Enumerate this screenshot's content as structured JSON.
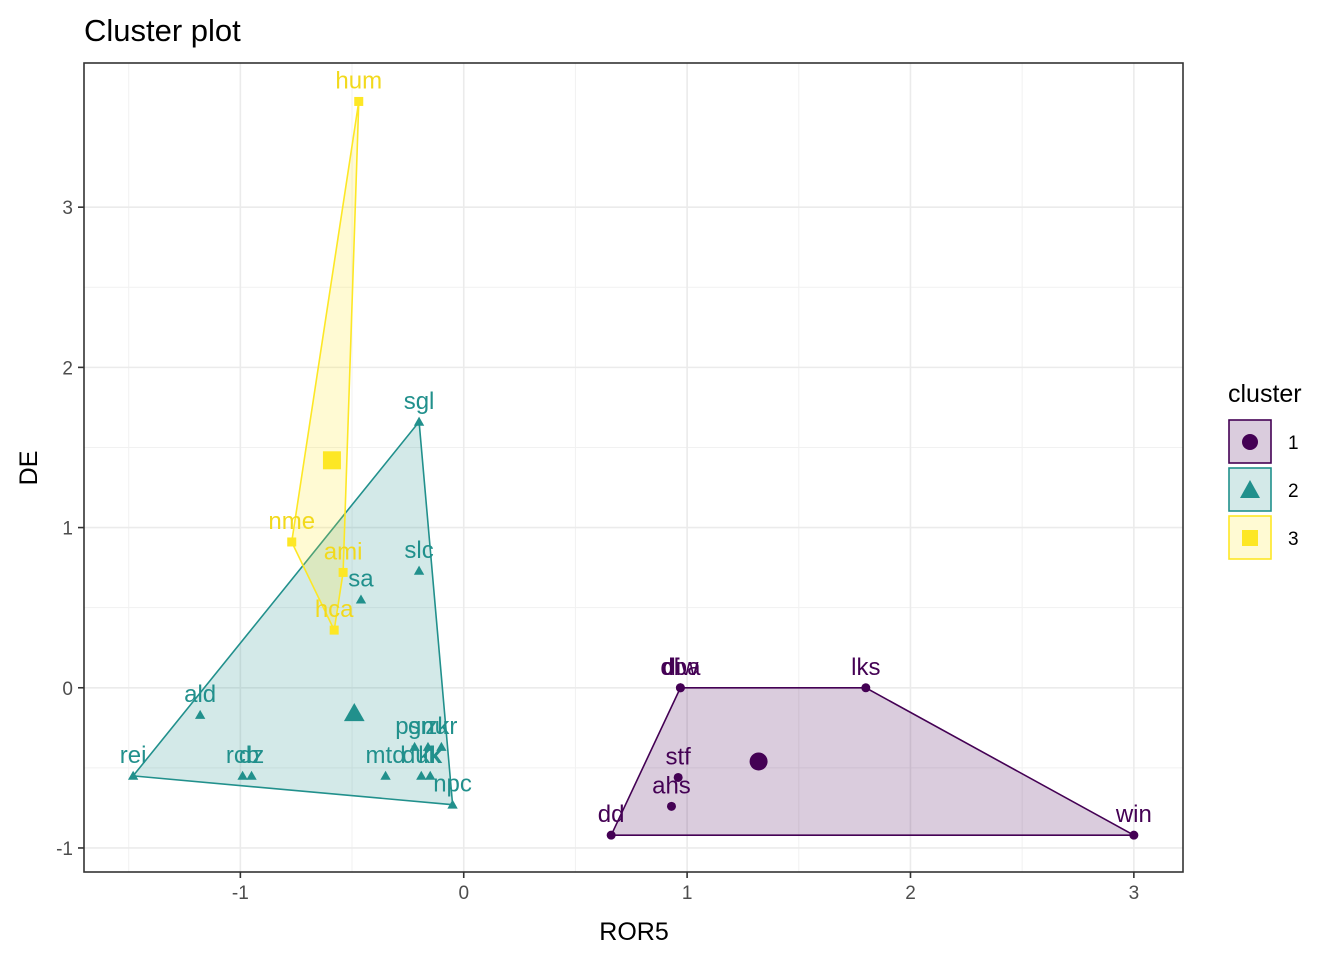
{
  "chart_data": {
    "type": "scatter",
    "title": "Cluster plot",
    "xlabel": "ROR5",
    "ylabel": "DE",
    "xlim": [
      -1.7,
      3.22
    ],
    "ylim": [
      -1.15,
      3.9
    ],
    "xticks": [
      -1,
      0,
      1,
      2,
      3
    ],
    "yticks": [
      -1,
      0,
      1,
      2,
      3
    ],
    "xtick_labels": [
      "-1",
      "0",
      "1",
      "2",
      "3"
    ],
    "ytick_labels": [
      "-1",
      "0",
      "1",
      "2",
      "3"
    ],
    "grid": true,
    "legend": {
      "title": "cluster",
      "position": "right",
      "entries": [
        {
          "label": "1",
          "color": "#440154",
          "shape": "circle"
        },
        {
          "label": "2",
          "color": "#21908C",
          "shape": "triangle"
        },
        {
          "label": "3",
          "color": "#FDE725",
          "shape": "square"
        }
      ]
    },
    "clusters": [
      {
        "name": "1",
        "color": "#440154",
        "label_color": "#440154",
        "shape": "circle",
        "centroid": {
          "x": 1.32,
          "y": -0.46
        },
        "hull": [
          [
            0.66,
            -0.92
          ],
          [
            0.97,
            0.0
          ],
          [
            1.8,
            0.0
          ],
          [
            3.0,
            -0.92
          ]
        ],
        "points": [
          {
            "label": "dba",
            "x": 0.97,
            "y": 0.0
          },
          {
            "label": "diw",
            "x": 0.97,
            "y": 0.0
          },
          {
            "label": "lks",
            "x": 1.8,
            "y": 0.0
          },
          {
            "label": "stf",
            "x": 0.96,
            "y": -0.56
          },
          {
            "label": "ahs",
            "x": 0.93,
            "y": -0.74
          },
          {
            "label": "dd",
            "x": 0.66,
            "y": -0.92
          },
          {
            "label": "win",
            "x": 3.0,
            "y": -0.92
          }
        ]
      },
      {
        "name": "2",
        "color": "#21908C",
        "label_color": "#21908C",
        "shape": "triangle",
        "centroid": {
          "x": -0.49,
          "y": -0.16
        },
        "hull": [
          [
            -1.48,
            -0.55
          ],
          [
            -0.2,
            1.66
          ],
          [
            -0.05,
            -0.73
          ]
        ],
        "points": [
          {
            "label": "sgl",
            "x": -0.2,
            "y": 1.66
          },
          {
            "label": "slc",
            "x": -0.2,
            "y": 0.73
          },
          {
            "label": "sa",
            "x": -0.46,
            "y": 0.55
          },
          {
            "label": "ald",
            "x": -1.18,
            "y": -0.17
          },
          {
            "label": "rei",
            "x": -1.48,
            "y": -0.55
          },
          {
            "label": "rcb",
            "x": -0.99,
            "y": -0.55
          },
          {
            "label": "dz",
            "x": -0.95,
            "y": -0.55
          },
          {
            "label": "psn",
            "x": -0.22,
            "y": -0.37
          },
          {
            "label": "gnu",
            "x": -0.16,
            "y": -0.37
          },
          {
            "label": "zkr",
            "x": -0.1,
            "y": -0.37
          },
          {
            "label": "mtd",
            "x": -0.35,
            "y": -0.55
          },
          {
            "label": "duk",
            "x": -0.19,
            "y": -0.55
          },
          {
            "label": "kk",
            "x": -0.15,
            "y": -0.55
          },
          {
            "label": "npc",
            "x": -0.05,
            "y": -0.73
          }
        ]
      },
      {
        "name": "3",
        "color": "#FDE725",
        "label_color": "#F2D91C",
        "shape": "square",
        "centroid": {
          "x": -0.59,
          "y": 1.42
        },
        "hull": [
          [
            -0.47,
            3.66
          ],
          [
            -0.77,
            0.91
          ],
          [
            -0.58,
            0.36
          ],
          [
            -0.54,
            0.72
          ]
        ],
        "points": [
          {
            "label": "hum",
            "x": -0.47,
            "y": 3.66
          },
          {
            "label": "nme",
            "x": -0.77,
            "y": 0.91
          },
          {
            "label": "ami",
            "x": -0.54,
            "y": 0.72
          },
          {
            "label": "hca",
            "x": -0.58,
            "y": 0.36
          }
        ]
      }
    ]
  }
}
